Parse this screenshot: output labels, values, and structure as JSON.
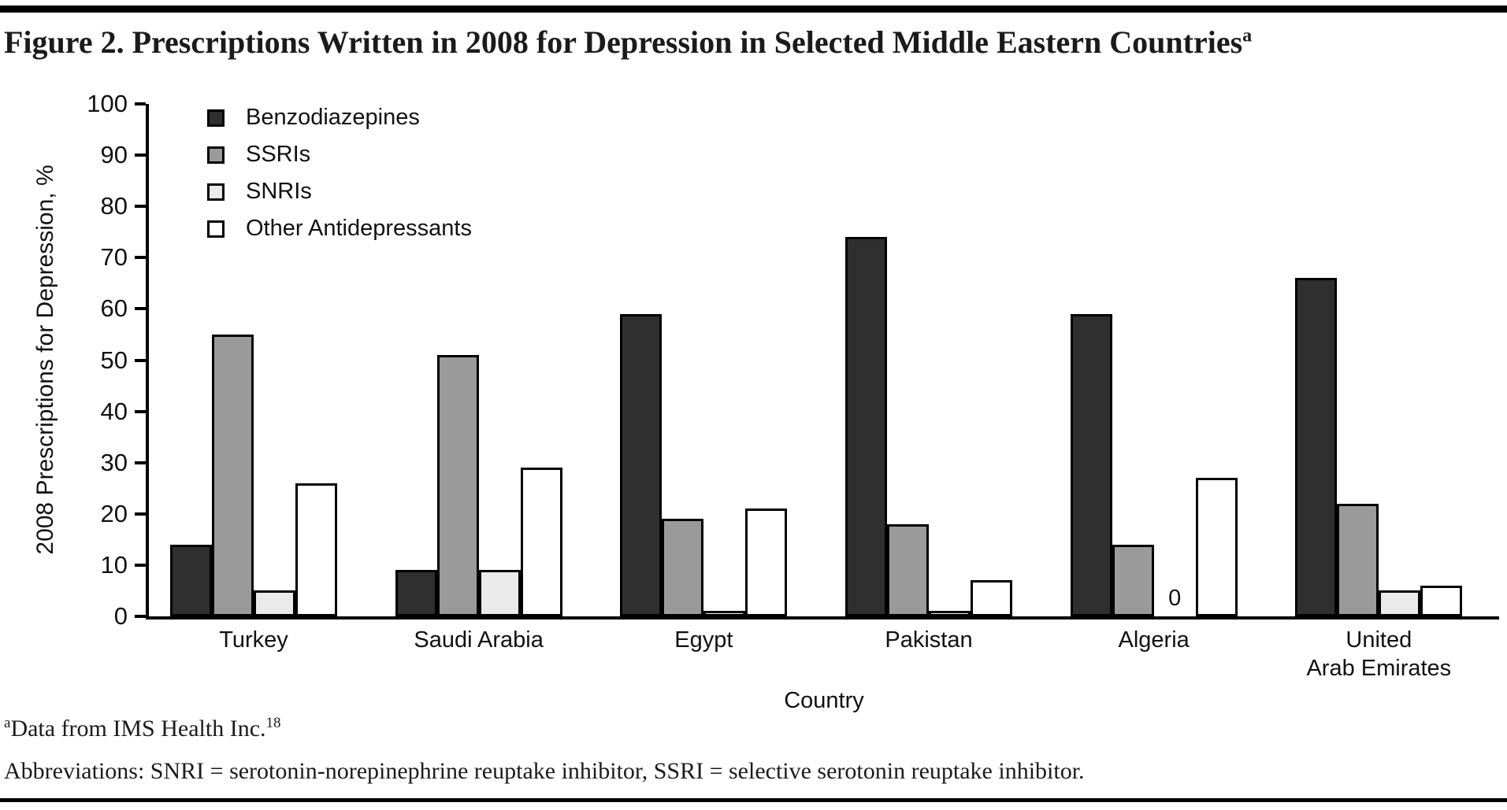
{
  "figure": {
    "title": "Figure 2. Prescriptions Written in 2008 for Depression in Selected Middle Eastern Countries",
    "title_superscript": "a"
  },
  "footnotes": {
    "line1_superscript": "a",
    "line1_text": "Data from IMS Health Inc.",
    "line1_ref_superscript": "18",
    "line2_text": "Abbreviations: SNRI = serotonin-norepinephrine reuptake inhibitor, SSRI = selective serotonin reuptake inhibitor."
  },
  "chart_data": {
    "type": "bar",
    "title": "",
    "xlabel": "Country",
    "ylabel": "2008 Prescriptions for Depression, %",
    "ylim": [
      0,
      100
    ],
    "yticks": [
      0,
      10,
      20,
      30,
      40,
      50,
      60,
      70,
      80,
      90,
      100
    ],
    "grid": false,
    "legend_position": "top-left-inside",
    "zero_label": "0",
    "bar_border_color": "#000000",
    "categories": [
      "Turkey",
      "Saudi Arabia",
      "Egypt",
      "Pakistan",
      "Algeria",
      "United\nArab Emirates"
    ],
    "series": [
      {
        "name": "Benzodiazepines",
        "color": "#2f2f2f",
        "values": [
          14,
          9,
          59,
          74,
          59,
          66
        ]
      },
      {
        "name": "SSRIs",
        "color": "#9a9a9a",
        "values": [
          55,
          51,
          19,
          18,
          14,
          22
        ]
      },
      {
        "name": "SNRIs",
        "color": "#eaeaea",
        "values": [
          5,
          9,
          1,
          1,
          0,
          5
        ]
      },
      {
        "name": "Other Antidepressants",
        "color": "#ffffff",
        "values": [
          26,
          29,
          21,
          7,
          27,
          6
        ]
      }
    ]
  }
}
